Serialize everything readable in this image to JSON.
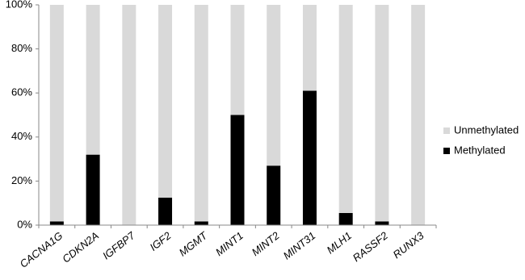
{
  "chart_data": {
    "type": "stacked_bar",
    "categories": [
      "CACNA1G",
      "CDKN2A",
      "IGFBP7",
      "IGF2",
      "MGMT",
      "MINT1",
      "MINT2",
      "MINT31",
      "MLH1",
      "RASSF2",
      "RUNX3"
    ],
    "series": [
      {
        "name": "Methylated",
        "color": "#000000",
        "values": [
          1.7,
          32,
          0,
          12.5,
          1.7,
          50,
          27,
          61,
          5.5,
          1.7,
          0
        ]
      },
      {
        "name": "Unmethylated",
        "color": "#d9d9d9",
        "values": [
          98.3,
          68,
          100,
          87.5,
          98.3,
          50,
          73,
          39,
          94.5,
          98.3,
          100
        ]
      }
    ],
    "ylim": [
      0,
      100
    ],
    "yticks": [
      {
        "value": 0,
        "label": "0%"
      },
      {
        "value": 20,
        "label": "20%"
      },
      {
        "value": 40,
        "label": "40%"
      },
      {
        "value": 60,
        "label": "60%"
      },
      {
        "value": 80,
        "label": "80%"
      },
      {
        "value": 100,
        "label": "100%"
      }
    ],
    "legend": "right"
  }
}
